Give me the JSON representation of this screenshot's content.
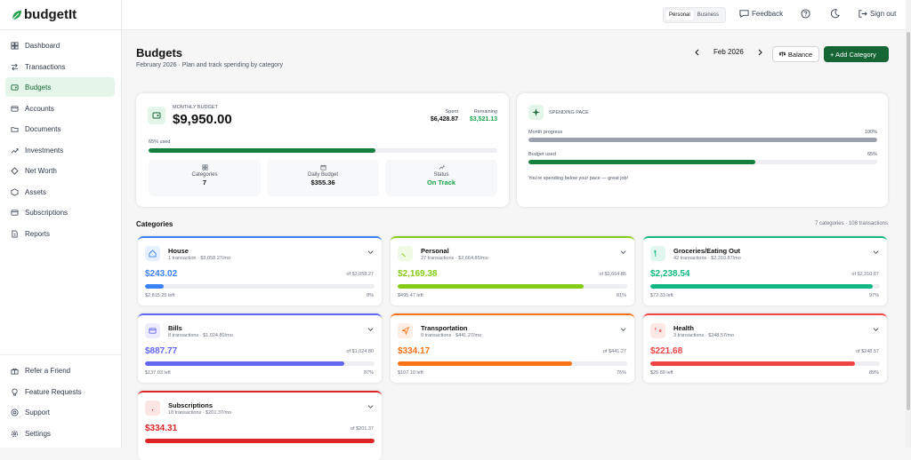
{
  "app": {
    "name": "budgetIt",
    "brand_color": "#166534"
  },
  "sidebar": {
    "items": [
      {
        "label": "Dashboard",
        "icon": "dashboard-icon"
      },
      {
        "label": "Transactions",
        "icon": "transactions-icon"
      },
      {
        "label": "Budgets",
        "icon": "budgets-icon",
        "active": true
      },
      {
        "label": "Accounts",
        "icon": "accounts-icon"
      },
      {
        "label": "Documents",
        "icon": "documents-icon"
      },
      {
        "label": "Investments",
        "icon": "investments-icon"
      },
      {
        "label": "Net Worth",
        "icon": "net-worth-icon"
      },
      {
        "label": "Assets",
        "icon": "assets-icon"
      },
      {
        "label": "Subscriptions",
        "icon": "subscriptions-icon"
      },
      {
        "label": "Reports",
        "icon": "reports-icon"
      }
    ],
    "footer": [
      {
        "label": "Refer a Friend",
        "icon": "gift-icon"
      },
      {
        "label": "Feature Requests",
        "icon": "lightbulb-icon"
      },
      {
        "label": "Support",
        "icon": "support-icon"
      },
      {
        "label": "Settings",
        "icon": "gear-icon"
      }
    ]
  },
  "topbar": {
    "mode_personal": "Personal",
    "mode_business": "Business",
    "feedback": "Feedback",
    "signout": "Sign out"
  },
  "page": {
    "title": "Budgets",
    "subtitle": "February 2026 · Plan and track spending by category",
    "month": "Feb 2026",
    "balance_button": "Balance",
    "add_button": "+ Add Category"
  },
  "summary": {
    "label": "MONTHLY BUDGET",
    "amount": "$9,950.00",
    "spent_label": "Spent",
    "spent": "$6,428.87",
    "remaining_label": "Remaining",
    "remaining": "$3,521.13",
    "used": "65% used",
    "used_fraction": 0.65,
    "stats": [
      {
        "label": "Categories",
        "value": "7"
      },
      {
        "label": "Daily Budget",
        "value": "$355.36"
      },
      {
        "label": "Status",
        "value": "On Track"
      }
    ]
  },
  "pace": {
    "label": "SPENDING PACE",
    "month_label": "Month progress",
    "month_pct": "100%",
    "month_fraction": 1.0,
    "budget_label": "Budget used",
    "budget_pct": "65%",
    "budget_fraction": 0.65,
    "message": "You're spending below your pace — great job!"
  },
  "categories_header": {
    "title": "Categories",
    "meta": "7 categories · 108 transactions"
  },
  "categories": [
    {
      "name": "House",
      "tx": "1 transaction · $3,058.27/mo",
      "amount": "$243.02",
      "of": "of $3,058.27",
      "left": "$2,815.25 left",
      "pct": "8%",
      "fraction": 0.08,
      "color": "#3b82f6",
      "icon": "house-icon"
    },
    {
      "name": "Personal",
      "tx": "27 transactions · $2,664.85/mo",
      "amount": "$2,169.38",
      "of": "of $2,664.85",
      "left": "$495.47 left",
      "pct": "81%",
      "fraction": 0.81,
      "color": "#84cc16",
      "icon": "heart-icon"
    },
    {
      "name": "Groceries/Eating Out",
      "tx": "42 transactions · $2,310.87/mo",
      "amount": "$2,238.54",
      "of": "of $2,310.87",
      "left": "$72.33 left",
      "pct": "97%",
      "fraction": 0.97,
      "color": "#10b981",
      "icon": "utensils-icon"
    },
    {
      "name": "Bills",
      "tx": "8 transactions · $1,024.80/mo",
      "amount": "$887.77",
      "of": "of $1,024.80",
      "left": "$137.03 left",
      "pct": "87%",
      "fraction": 0.87,
      "color": "#6366f1",
      "icon": "credit-card-icon"
    },
    {
      "name": "Transportation",
      "tx": "9 transactions · $441.27/mo",
      "amount": "$334.17",
      "of": "of $441.27",
      "left": "$107.10 left",
      "pct": "76%",
      "fraction": 0.76,
      "color": "#f97316",
      "icon": "plane-icon"
    },
    {
      "name": "Health",
      "tx": "3 transactions · $248.57/mo",
      "amount": "$221.68",
      "of": "of $248.57",
      "left": "$26.89 left",
      "pct": "89%",
      "fraction": 0.89,
      "color": "#ef4444",
      "icon": "stethoscope-icon"
    },
    {
      "name": "Subscriptions",
      "tx": "18 transactions · $201.37/mo",
      "amount": "$334.31",
      "of": "of $201.37",
      "left": "",
      "pct": "",
      "fraction": 1.0,
      "color": "#dc2626",
      "icon": "wifi-icon"
    }
  ]
}
